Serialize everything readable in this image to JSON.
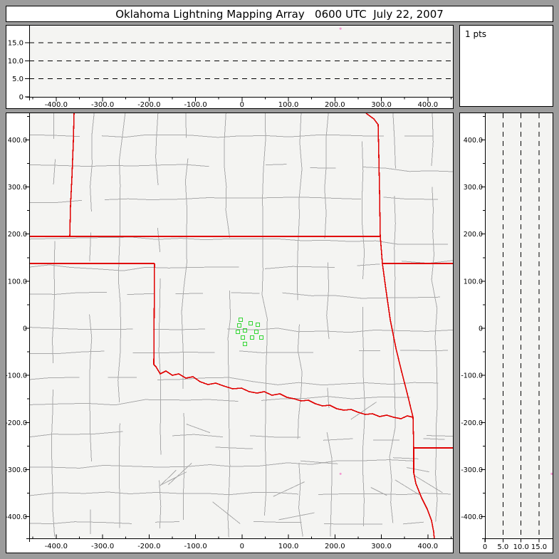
{
  "title": "Oklahoma Lightning Mapping Array   0600 UTC  July 22, 2007",
  "points_label": "1 pts",
  "colors": {
    "frame_bg": "#9c9c9c",
    "plot_bg": "#f4f4f2",
    "axis": "#000000",
    "county_line": "#a9a9a9",
    "state_border": "#e00000",
    "station": "#33d633",
    "point": "#f49ad2"
  },
  "tick_labels": {
    "ew": [
      "-400.0",
      "-300.0",
      "-200.0",
      "-100.0",
      "0",
      "100.0",
      "200.0",
      "300.0",
      "400.0"
    ],
    "ns": [
      "400.0",
      "300.0",
      "200.0",
      "100.0",
      "0",
      "-100.0",
      "-200.0",
      "-300.0",
      "-400.0"
    ],
    "alt": [
      "0",
      "5.0",
      "10.0",
      "15.0"
    ]
  },
  "chart_data": [
    {
      "type": "scatter",
      "panel": "east-west-vs-altitude",
      "title": "Oklahoma Lightning Mapping Array   0600 UTC  July 22, 2007",
      "xlabel": "",
      "ylabel": "",
      "xlim": [
        -458,
        457
      ],
      "ylim": [
        0,
        19.7
      ],
      "x_ticks": [
        -400,
        -300,
        -200,
        -100,
        0,
        100,
        200,
        300,
        400
      ],
      "y_ticks": [
        0,
        5,
        10,
        15
      ],
      "gridlines": {
        "style": "dashed",
        "at": [
          5,
          10,
          15
        ]
      },
      "series": [
        {
          "name": "lightning-sources",
          "marker": "dot",
          "color": "#f49ad2",
          "points": [
            [
              212,
              18.9
            ]
          ]
        }
      ]
    },
    {
      "type": "other",
      "panel": "altitude-histogram",
      "annotations": [
        "1 pts"
      ],
      "series": []
    },
    {
      "type": "scatter",
      "panel": "plan-view-map",
      "xlabel": "",
      "ylabel": "",
      "xlim": [
        -458,
        457
      ],
      "ylim": [
        -446,
        456
      ],
      "x_ticks": [
        -400,
        -300,
        -200,
        -100,
        0,
        100,
        200,
        300,
        400
      ],
      "y_ticks": [
        400,
        300,
        200,
        100,
        0,
        -100,
        -200,
        -300,
        -400
      ],
      "map_overlay": "Oklahoma state and county borders, neighboring state lines in red",
      "series": [
        {
          "name": "lma-stations",
          "marker": "open-square",
          "color": "#33d633",
          "points": [
            [
              -2.8,
              18.1
            ],
            [
              18.7,
              10.6
            ],
            [
              34.0,
              7.6
            ],
            [
              -5.8,
              6.0
            ],
            [
              6.4,
              -4.5
            ],
            [
              -8.9,
              -7.6
            ],
            [
              31.0,
              -7.6
            ],
            [
              1.8,
              -19.7
            ],
            [
              21.8,
              -19.7
            ],
            [
              41.7,
              -19.7
            ],
            [
              6.4,
              -33.3
            ]
          ]
        },
        {
          "name": "lightning-sources",
          "marker": "dot",
          "color": "#f49ad2",
          "points": [
            [
              212,
              -309
            ]
          ]
        }
      ]
    },
    {
      "type": "scatter",
      "panel": "altitude-vs-north-south",
      "xlabel": "",
      "ylabel": "",
      "xlim": [
        0,
        19.1
      ],
      "ylim": [
        -446,
        456
      ],
      "x_ticks": [
        0,
        5,
        10,
        15
      ],
      "y_ticks": [
        400,
        300,
        200,
        100,
        0,
        -100,
        -200,
        -300,
        -400
      ],
      "gridlines": {
        "style": "dashed",
        "at": [
          5,
          10,
          15
        ]
      },
      "series": [
        {
          "name": "lightning-sources",
          "marker": "dot",
          "color": "#f49ad2",
          "points": [
            [
              18.9,
              -309
            ]
          ]
        }
      ]
    }
  ],
  "map_borders": [
    {
      "name": "co-ks-border",
      "pts": [
        [
          95,
          0
        ],
        [
          94,
          40
        ],
        [
          92,
          90
        ],
        [
          90,
          130
        ],
        [
          89,
          173
        ]
      ]
    },
    {
      "name": "ks-ok-border",
      "pts": [
        [
          32,
          173
        ],
        [
          525,
          173
        ]
      ]
    },
    {
      "name": "panhandle-south-border",
      "pts": [
        [
          32,
          211
        ],
        [
          208,
          211
        ]
      ]
    },
    {
      "name": "ok-tx-100w-border",
      "pts": [
        [
          208,
          211
        ],
        [
          207,
          353
        ]
      ]
    },
    {
      "name": "red-river-border",
      "pts": [
        [
          207,
          353
        ],
        [
          210,
          356
        ],
        [
          216,
          366
        ],
        [
          224,
          362
        ],
        [
          233,
          368
        ],
        [
          242,
          366
        ],
        [
          252,
          372
        ],
        [
          262,
          370
        ],
        [
          272,
          377
        ],
        [
          283,
          381
        ],
        [
          294,
          379
        ],
        [
          305,
          383
        ],
        [
          318,
          387
        ],
        [
          330,
          386
        ],
        [
          341,
          391
        ],
        [
          352,
          393
        ],
        [
          362,
          391
        ],
        [
          373,
          396
        ],
        [
          384,
          394
        ],
        [
          394,
          399
        ],
        [
          404,
          401
        ],
        [
          414,
          404
        ],
        [
          424,
          403
        ],
        [
          434,
          408
        ],
        [
          444,
          411
        ],
        [
          454,
          410
        ],
        [
          464,
          415
        ],
        [
          474,
          417
        ],
        [
          484,
          416
        ],
        [
          494,
          420
        ],
        [
          504,
          423
        ],
        [
          514,
          422
        ],
        [
          524,
          426
        ],
        [
          534,
          424
        ],
        [
          544,
          427
        ],
        [
          554,
          429
        ],
        [
          563,
          425
        ],
        [
          571,
          427
        ]
      ]
    },
    {
      "name": "ok-east-border",
      "pts": [
        [
          505,
          0
        ],
        [
          516,
          8
        ],
        [
          522,
          16
        ],
        [
          523,
          60
        ],
        [
          524,
          110
        ],
        [
          525,
          173
        ],
        [
          528,
          211
        ],
        [
          533,
          248
        ],
        [
          539,
          290
        ],
        [
          547,
          330
        ],
        [
          555,
          363
        ],
        [
          563,
          394
        ],
        [
          571,
          427
        ]
      ]
    },
    {
      "name": "mo-ar-border",
      "pts": [
        [
          528,
          211
        ],
        [
          629,
          211
        ]
      ]
    },
    {
      "name": "ar-tx-border",
      "pts": [
        [
          571,
          427
        ],
        [
          572,
          470
        ],
        [
          572,
          505
        ],
        [
          575,
          520
        ],
        [
          583,
          540
        ],
        [
          591,
          556
        ],
        [
          597,
          572
        ],
        [
          600,
          588
        ],
        [
          601,
          599
        ]
      ]
    },
    {
      "name": "tx-la-33n-border",
      "pts": [
        [
          572,
          470
        ],
        [
          629,
          470
        ]
      ]
    }
  ]
}
